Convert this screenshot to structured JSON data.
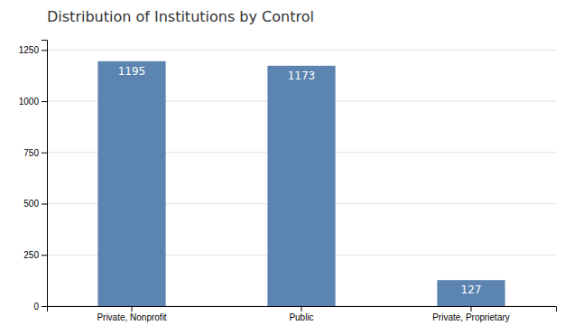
{
  "chart_data": {
    "type": "bar",
    "title": "Distribution of Institutions by Control",
    "categories": [
      "Private, Nonprofit",
      "Public",
      "Private, Proprietary"
    ],
    "values": [
      1195,
      1173,
      127
    ],
    "color": "#5b85b0",
    "ylim": [
      0,
      1300
    ],
    "yticks": [
      0,
      250,
      500,
      750,
      1000,
      1250
    ],
    "grid": true,
    "data_labels": true
  }
}
